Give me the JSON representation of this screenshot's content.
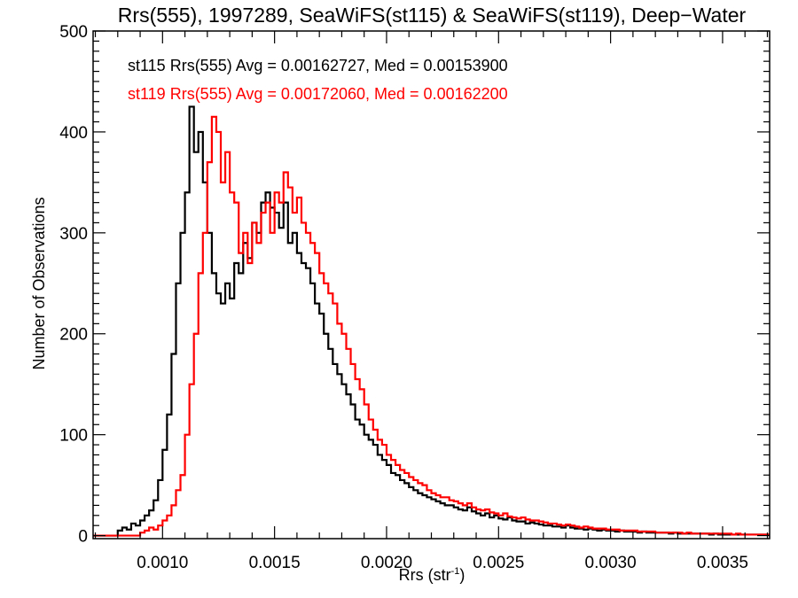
{
  "chart_data": {
    "type": "histogram-step",
    "title": "Rrs(555), 1997289, SeaWiFS(st115) & SeaWiFS(st119), Deep−Water",
    "xlabel": "Rrs (str",
    "xlabel_sup": "-1",
    "xlabel_close": ")",
    "ylabel": "Number of Observations",
    "xlim": [
      0.00069,
      0.00371
    ],
    "ylim": [
      -3,
      500
    ],
    "x_ticks": [
      0.001,
      0.0015,
      0.002,
      0.0025,
      0.003,
      0.0035
    ],
    "x_tick_labels": [
      "0.0010",
      "0.0015",
      "0.0020",
      "0.0025",
      "0.0030",
      "0.0035"
    ],
    "x_minor_step": 0.0001,
    "y_ticks": [
      0,
      100,
      200,
      300,
      400,
      500
    ],
    "y_tick_labels": [
      "0",
      "100",
      "200",
      "300",
      "400",
      "500"
    ],
    "y_minor_step": 10,
    "grid": false,
    "legend_position": "top-left",
    "bin_start": 0.0007,
    "bin_width": 2e-05,
    "series": [
      {
        "name": "st115",
        "color": "#000000",
        "legend_text": "st115 Rrs(555) Avg = 0.00162727, Med = 0.00153900",
        "avg": 0.00162727,
        "median": 0.001539,
        "values": [
          0,
          0,
          0,
          0,
          0,
          5,
          8,
          6,
          12,
          10,
          15,
          20,
          25,
          35,
          55,
          85,
          120,
          180,
          250,
          300,
          340,
          425,
          380,
          400,
          350,
          300,
          260,
          240,
          230,
          250,
          235,
          270,
          260,
          290,
          275,
          310,
          300,
          330,
          340,
          325,
          320,
          305,
          330,
          290,
          300,
          280,
          270,
          265,
          250,
          230,
          220,
          200,
          185,
          170,
          160,
          150,
          140,
          130,
          115,
          110,
          100,
          95,
          90,
          80,
          75,
          70,
          62,
          60,
          55,
          52,
          48,
          45,
          42,
          40,
          38,
          36,
          34,
          32,
          30,
          30,
          28,
          26,
          25,
          28,
          24,
          22,
          20,
          22,
          18,
          20,
          17,
          16,
          18,
          15,
          14,
          14,
          12,
          13,
          12,
          11,
          10,
          10,
          9,
          9,
          8,
          10,
          8,
          7,
          7,
          6,
          7,
          6,
          5,
          6,
          5,
          5,
          4,
          5,
          4,
          4,
          4,
          3,
          4,
          3,
          3,
          3,
          3,
          3,
          2,
          3,
          2,
          2,
          2,
          2,
          2,
          2,
          2,
          1,
          2,
          1,
          1,
          1,
          1,
          1,
          1,
          1,
          1,
          1,
          1,
          1,
          1
        ]
      },
      {
        "name": "st119",
        "color": "#ff0000",
        "legend_text": "st119 Rrs(555) Avg = 0.00172060, Med = 0.00162200",
        "avg": 0.0017206,
        "median": 0.001622,
        "values": [
          0,
          0,
          0,
          0,
          0,
          0,
          0,
          0,
          0,
          0,
          3,
          5,
          8,
          6,
          10,
          15,
          20,
          30,
          45,
          60,
          100,
          150,
          200,
          260,
          300,
          370,
          415,
          400,
          350,
          380,
          340,
          330,
          280,
          300,
          270,
          310,
          290,
          320,
          330,
          300,
          340,
          330,
          360,
          345,
          320,
          335,
          310,
          300,
          290,
          280,
          260,
          250,
          240,
          230,
          210,
          200,
          185,
          170,
          155,
          145,
          130,
          115,
          105,
          95,
          90,
          80,
          75,
          70,
          65,
          62,
          58,
          55,
          52,
          50,
          45,
          42,
          40,
          38,
          38,
          35,
          34,
          32,
          30,
          32,
          28,
          26,
          25,
          26,
          23,
          22,
          20,
          22,
          19,
          18,
          17,
          18,
          16,
          15,
          15,
          14,
          13,
          12,
          12,
          11,
          10,
          11,
          10,
          9,
          8,
          9,
          8,
          7,
          7,
          7,
          6,
          6,
          6,
          5,
          5,
          5,
          5,
          4,
          4,
          4,
          4,
          3,
          3,
          3,
          3,
          3,
          3,
          2,
          3,
          2,
          2,
          2,
          2,
          2,
          2,
          2,
          2,
          2,
          1,
          2,
          1,
          1,
          1,
          1,
          1,
          1,
          1
        ]
      }
    ]
  }
}
